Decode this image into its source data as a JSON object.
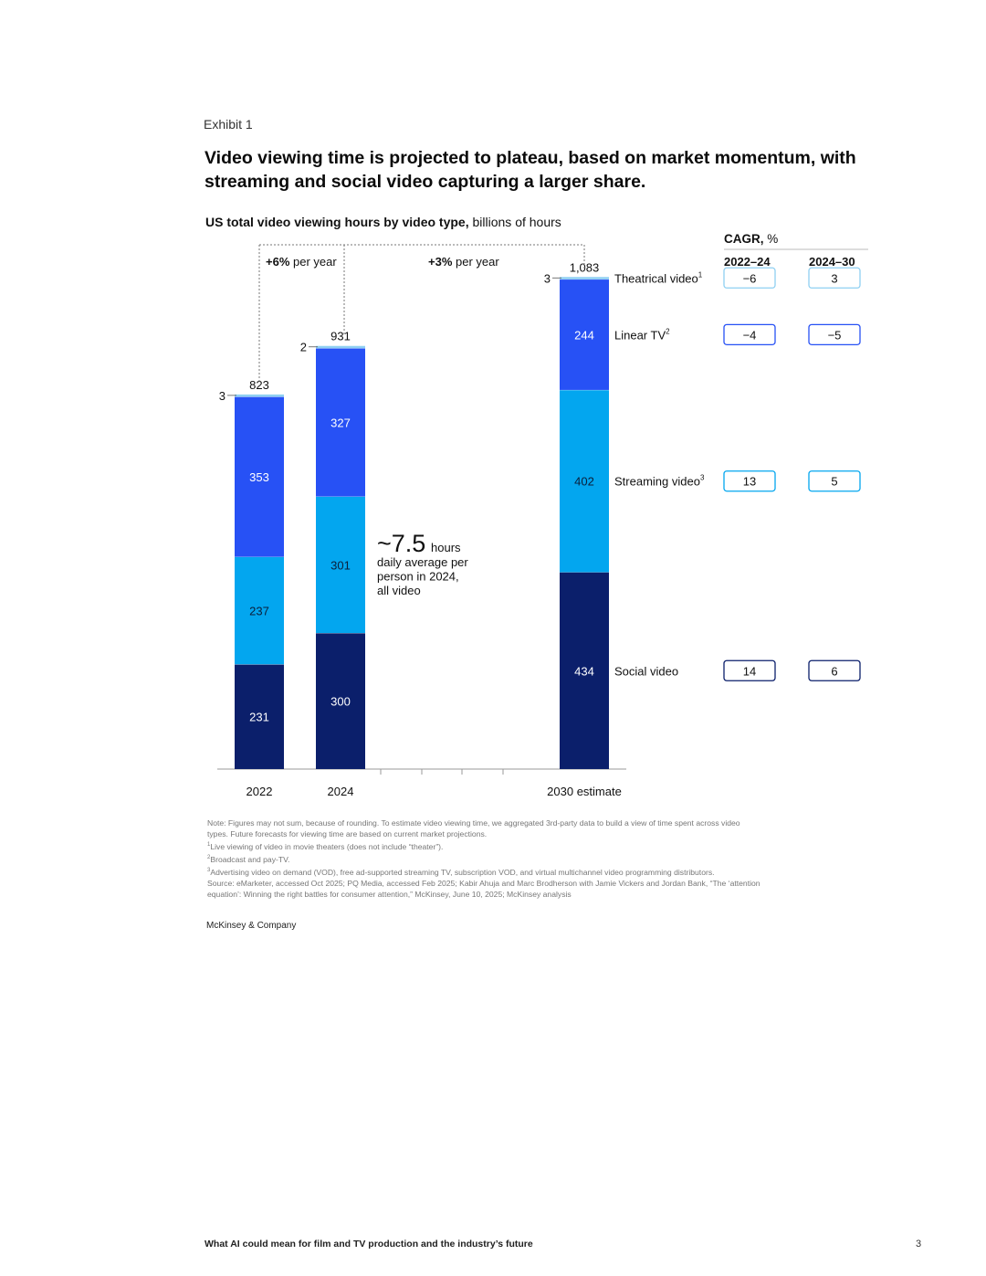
{
  "exhibit_label": "Exhibit 1",
  "title": "Video viewing time is projected to plateau, based on market momentum, with streaming and social video capturing a larger share.",
  "subtitle_bold": "US total video viewing hours by video type,",
  "subtitle_rest": " billions of hours",
  "chart_data": {
    "type": "bar",
    "stacked": true,
    "title": "US total video viewing hours by video type",
    "ylabel": "billions of hours",
    "categories": [
      "2022",
      "2024",
      "2030 estimate"
    ],
    "totals": [
      "823",
      "931",
      "1,083"
    ],
    "series": [
      {
        "name": "Social video",
        "values": [
          231,
          300,
          434
        ],
        "color": "#0b1f6b",
        "cagr_2022_24": "14",
        "cagr_2024_30": "6"
      },
      {
        "name": "Streaming video",
        "sup": "3",
        "values": [
          237,
          301,
          402
        ],
        "color": "#03a6ef",
        "cagr_2022_24": "13",
        "cagr_2024_30": "5"
      },
      {
        "name": "Linear TV",
        "sup": "2",
        "values": [
          353,
          327,
          244
        ],
        "color": "#2751f5",
        "cagr_2022_24": "−4",
        "cagr_2024_30": "−5"
      },
      {
        "name": "Theatrical video",
        "sup": "1",
        "values": [
          3,
          2,
          3
        ],
        "color": "#8fd0f2",
        "cagr_2022_24": "−6",
        "cagr_2024_30": "3"
      }
    ],
    "growth_annotations": [
      {
        "bold": "+6%",
        "text": " per year"
      },
      {
        "bold": "+3%",
        "text": " per year"
      }
    ],
    "callout": {
      "big": "~7.5",
      "unit": "hours",
      "lines": [
        "daily average per",
        "person in 2024,",
        "all video"
      ]
    },
    "cagr_header": {
      "bold": "CAGR,",
      "rest": " %",
      "col1": "2022–24",
      "col2": "2024–30"
    },
    "ylim": [
      0,
      1083
    ]
  },
  "notes": [
    "Note: Figures may not sum, because of rounding. To estimate video viewing time, we aggregated 3rd-party data to build a view of time spent across video",
    "types. Future forecasts for viewing time are based on current market projections."
  ],
  "footnotes": [
    {
      "mark": "1",
      "text": "Live viewing of video in movie theaters (does not include “theater”)."
    },
    {
      "mark": "2",
      "text": "Broadcast and pay-TV."
    },
    {
      "mark": "3",
      "text": "Advertising video on demand (VOD), free ad-supported streaming TV, subscription VOD, and virtual multichannel video programming distributors."
    }
  ],
  "source": [
    "Source: eMarketer, accessed Oct 2025; PQ Media, accessed Feb 2025; Kabir Ahuja and Marc Brodherson with Jamie Vickers and Jordan Bank, “The ‘attention",
    "equation’: Winning the right battles for consumer attention,” McKinsey, June 10, 2025; McKinsey analysis"
  ],
  "brand": "McKinsey & Company",
  "footer_title": "What AI could mean for film and TV production and the industry’s future",
  "page_number": "3"
}
